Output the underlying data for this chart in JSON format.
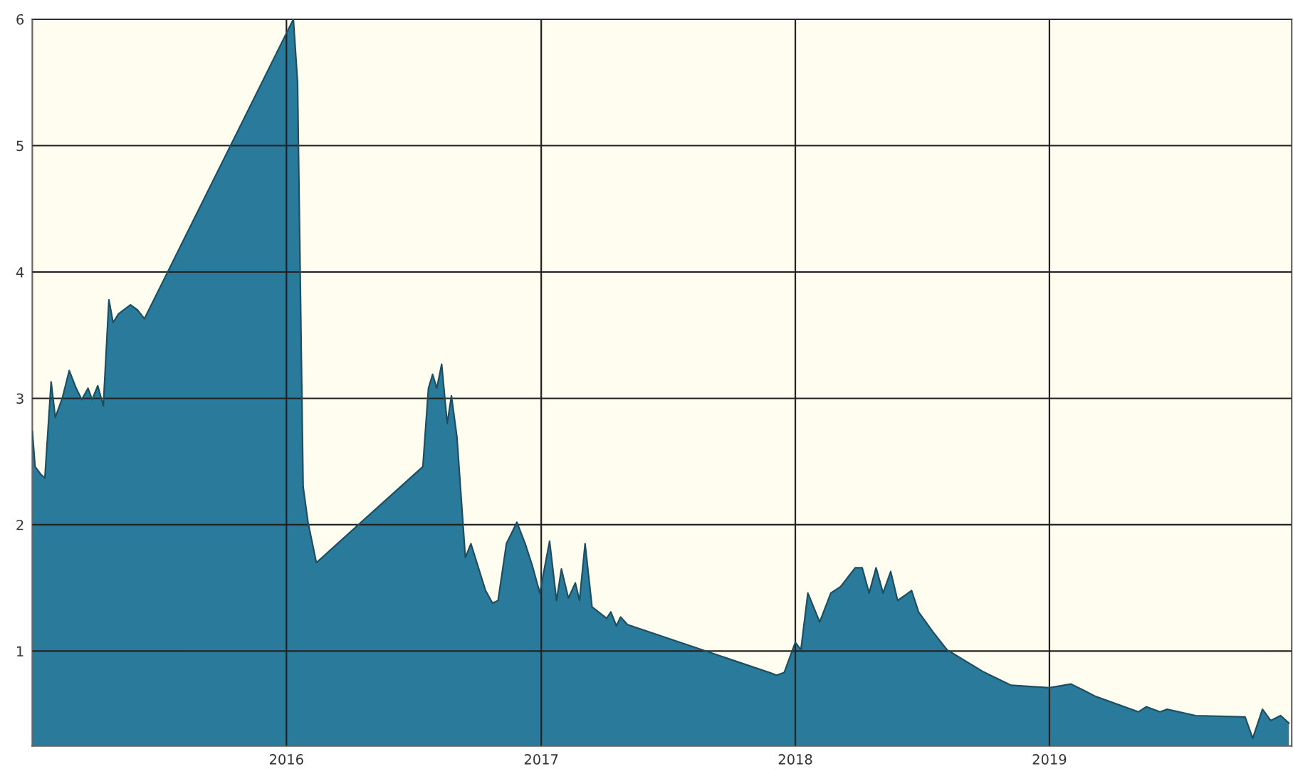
{
  "chart_data": {
    "type": "area",
    "x": [
      "2015-01-01",
      "2015-01-05",
      "2015-01-13",
      "2015-01-19",
      "2015-01-28",
      "2015-02-03",
      "2015-02-13",
      "2015-02-23",
      "2015-03-05",
      "2015-03-13",
      "2015-03-22",
      "2015-03-28",
      "2015-04-05",
      "2015-04-13",
      "2015-04-21",
      "2015-04-27",
      "2015-05-05",
      "2015-05-22",
      "2015-06-01",
      "2015-06-11",
      "2016-01-11",
      "2016-01-17",
      "2016-01-25",
      "2016-02-01",
      "2016-02-13",
      "2016-07-15",
      "2016-07-23",
      "2016-07-29",
      "2016-08-04",
      "2016-08-11",
      "2016-08-19",
      "2016-08-25",
      "2016-09-02",
      "2016-09-14",
      "2016-09-22",
      "2016-10-13",
      "2016-10-23",
      "2016-10-31",
      "2016-11-12",
      "2016-11-27",
      "2016-12-09",
      "2016-12-19",
      "2016-12-30",
      "2017-01-13",
      "2017-01-23",
      "2017-01-30",
      "2017-02-09",
      "2017-02-19",
      "2017-02-25",
      "2017-03-05",
      "2017-03-15",
      "2017-04-05",
      "2017-04-11",
      "2017-04-19",
      "2017-04-25",
      "2017-05-05",
      "2017-11-25",
      "2017-12-05",
      "2017-12-16",
      "2018-01-01",
      "2018-01-09",
      "2018-01-19",
      "2018-02-05",
      "2018-02-21",
      "2018-03-07",
      "2018-03-28",
      "2018-04-07",
      "2018-04-17",
      "2018-04-27",
      "2018-05-07",
      "2018-05-18",
      "2018-05-28",
      "2018-06-17",
      "2018-06-27",
      "2018-07-18",
      "2018-08-07",
      "2018-09-27",
      "2018-11-07",
      "2019-01-01",
      "2019-02-01",
      "2019-03-09",
      "2019-05-09",
      "2019-05-20",
      "2019-06-09",
      "2019-06-19",
      "2019-07-30",
      "2019-10-09",
      "2019-10-20",
      "2019-11-03",
      "2019-11-15",
      "2019-11-29",
      "2019-12-11"
    ],
    "series": [
      {
        "color": "#2a7a9b",
        "values": [
          2.74,
          2.46,
          2.4,
          2.37,
          3.13,
          2.85,
          3.0,
          3.22,
          3.08,
          2.99,
          3.08,
          2.99,
          3.1,
          2.94,
          3.78,
          3.6,
          3.67,
          3.74,
          3.7,
          3.63,
          6.0,
          5.5,
          2.3,
          2.02,
          1.7,
          2.46,
          3.08,
          3.19,
          3.08,
          3.27,
          2.8,
          3.02,
          2.69,
          1.74,
          1.85,
          1.48,
          1.38,
          1.4,
          1.85,
          2.02,
          1.85,
          1.68,
          1.46,
          1.87,
          1.4,
          1.65,
          1.42,
          1.54,
          1.4,
          1.85,
          1.35,
          1.26,
          1.31,
          1.2,
          1.27,
          1.21,
          0.83,
          0.81,
          0.83,
          1.07,
          1.01,
          1.46,
          1.23,
          1.46,
          1.51,
          1.66,
          1.66,
          1.46,
          1.66,
          1.46,
          1.63,
          1.4,
          1.48,
          1.31,
          1.15,
          1.01,
          0.84,
          0.73,
          0.71,
          0.74,
          0.64,
          0.52,
          0.56,
          0.52,
          0.54,
          0.49,
          0.48,
          0.31,
          0.54,
          0.45,
          0.49,
          0.43
        ]
      }
    ],
    "xlim": [
      "2015-01-01",
      "2019-12-15"
    ],
    "xticks": [
      {
        "value": "2016-01-01",
        "label": "2016"
      },
      {
        "value": "2017-01-01",
        "label": "2017"
      },
      {
        "value": "2018-01-01",
        "label": "2018"
      },
      {
        "value": "2019-01-01",
        "label": "2019"
      }
    ],
    "ylim": [
      0.25,
      6
    ],
    "yticks": [
      1,
      2,
      3,
      4,
      5,
      6
    ],
    "grid": true
  }
}
